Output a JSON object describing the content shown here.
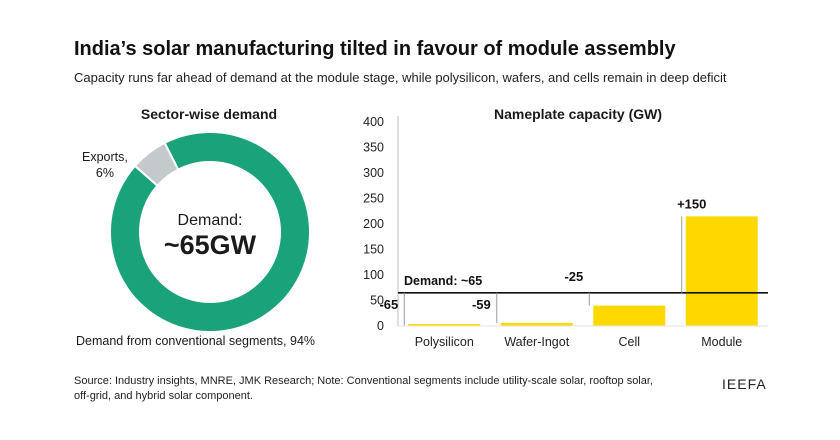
{
  "chart_data": [
    {
      "type": "pie",
      "variant": "donut",
      "title": "Sector-wise demand",
      "center_label": "Demand:",
      "center_value": "~65GW",
      "slices": [
        {
          "name": "Demand from conventional segments, 94%",
          "value": 94,
          "color": "#1aa37a"
        },
        {
          "name": "Exports,\n6%",
          "value": 6,
          "color": "#c4c9cc"
        }
      ]
    },
    {
      "type": "bar",
      "title": "Nameplate capacity (GW)",
      "categories": [
        "Polysilicon",
        "Wafer-Ingot",
        "Cell",
        "Module"
      ],
      "values": [
        0,
        6,
        40,
        215
      ],
      "bar_color": "#ffd800",
      "gap_labels": [
        "-65",
        "-59",
        "-25",
        "+150"
      ],
      "demand_line": {
        "label": "Demand: ~65",
        "value": 65
      },
      "ylim": [
        0,
        400
      ],
      "yticks": [
        0,
        50,
        100,
        150,
        200,
        250,
        300,
        350,
        400
      ],
      "grid": false
    }
  ],
  "header": {
    "title": "India’s solar manufacturing tilted in favour of module assembly",
    "subtitle": "Capacity runs far ahead of demand at the module stage, while polysilicon, wafers, and cells remain in deep deficit"
  },
  "footer": {
    "source": "Source: Industry insights, MNRE, JMK Research; Note: Conventional segments include utility-scale solar, rooftop solar, off-grid, and hybrid solar component.",
    "brand": "IEEFA"
  }
}
